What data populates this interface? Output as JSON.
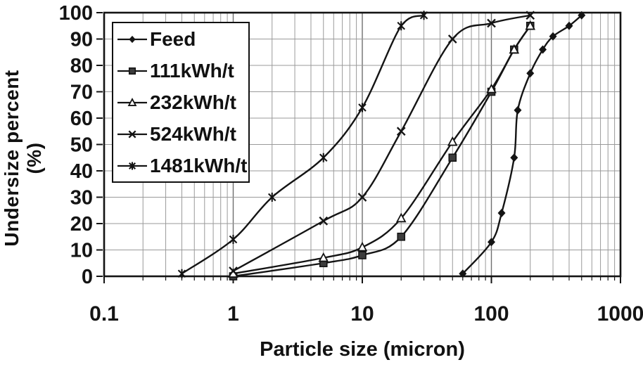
{
  "chart_data": {
    "type": "line",
    "title": "",
    "xlabel": "Particle size (micron)",
    "ylabel": "Undersize percent (%)",
    "x_scale": "log",
    "xlim": [
      0.1,
      1000
    ],
    "ylim": [
      0,
      100
    ],
    "x_tick_labels": [
      "0.1",
      "1",
      "10",
      "100",
      "1000"
    ],
    "x_tick_values": [
      0.1,
      1,
      10,
      100,
      1000
    ],
    "y_tick_labels": [
      "0",
      "10",
      "20",
      "30",
      "40",
      "50",
      "60",
      "70",
      "80",
      "90",
      "100"
    ],
    "y_tick_values": [
      0,
      10,
      20,
      30,
      40,
      50,
      60,
      70,
      80,
      90,
      100
    ],
    "grid": {
      "horizontal_step_pct": 10,
      "vertical": "log-decades-with-minors"
    },
    "legend": {
      "position": "top-left-inside"
    },
    "colors": {
      "background": "#ffffff",
      "frame": "#141414",
      "line": "#141414",
      "grid_minor": "#9a9a9a",
      "grid_major": "#6f6f6f",
      "marker_square_fill": "#3c3c3c",
      "marker_open_fill": "#ffffff"
    },
    "series": [
      {
        "name": "Feed",
        "marker": "diamond-filled",
        "points": [
          [
            60,
            1
          ],
          [
            100,
            13
          ],
          [
            120,
            24
          ],
          [
            150,
            45
          ],
          [
            160,
            63
          ],
          [
            200,
            77
          ],
          [
            250,
            86
          ],
          [
            300,
            91
          ],
          [
            400,
            95
          ],
          [
            500,
            99
          ]
        ]
      },
      {
        "name": "111kWh/t",
        "marker": "square-filled",
        "points": [
          [
            1,
            0
          ],
          [
            5,
            5
          ],
          [
            10,
            8
          ],
          [
            20,
            15
          ],
          [
            50,
            45
          ],
          [
            100,
            70
          ],
          [
            150,
            86
          ],
          [
            200,
            95
          ]
        ]
      },
      {
        "name": "232kWh/t",
        "marker": "triangle-open",
        "points": [
          [
            1,
            1
          ],
          [
            5,
            7
          ],
          [
            10,
            11
          ],
          [
            20,
            22
          ],
          [
            50,
            51
          ],
          [
            100,
            71
          ],
          [
            150,
            86
          ],
          [
            200,
            95
          ]
        ]
      },
      {
        "name": "524kWh/t",
        "marker": "x-cross",
        "points": [
          [
            1,
            2
          ],
          [
            5,
            21
          ],
          [
            10,
            30
          ],
          [
            20,
            55
          ],
          [
            50,
            90
          ],
          [
            100,
            96
          ],
          [
            200,
            99
          ]
        ]
      },
      {
        "name": "1481kWh/t",
        "marker": "asterisk-star",
        "points": [
          [
            0.4,
            1
          ],
          [
            1,
            14
          ],
          [
            2,
            30
          ],
          [
            5,
            45
          ],
          [
            10,
            64
          ],
          [
            20,
            95
          ],
          [
            30,
            99
          ]
        ]
      }
    ]
  }
}
